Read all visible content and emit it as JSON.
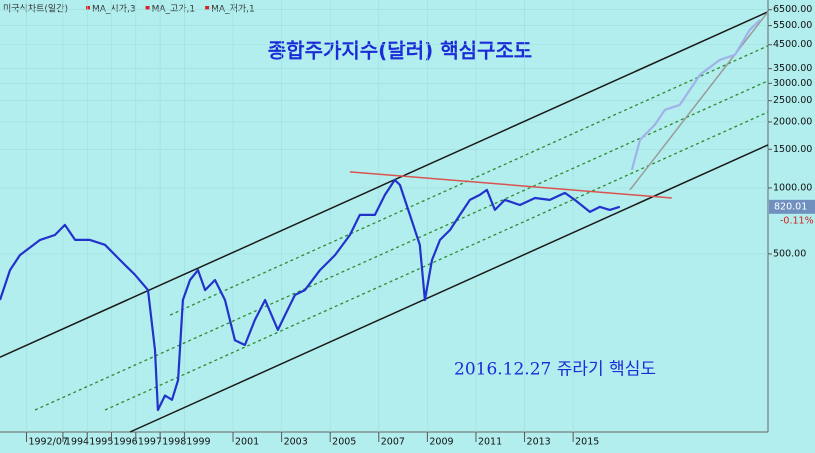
{
  "chart_data": {
    "type": "line",
    "chart_label": "미국식차트(일간)",
    "legend_items": [
      "MA_시가,3",
      "MA_고가,1",
      "MA_저가,1"
    ],
    "title": "종합주가지수(달러) 핵심구조도",
    "annotation": "2016.12.27 쥬라기 핵심도",
    "log_scale": true,
    "grid": true,
    "xlim": [
      1991.41,
      2023.02
    ],
    "ylim": [
      77,
      7200
    ],
    "xticks": [
      {
        "value": 1992.5,
        "label": "1992/07"
      },
      1994,
      1995,
      1996,
      1997,
      1998,
      1999,
      2001,
      2003,
      2005,
      2007,
      2009,
      2011,
      2013,
      2015
    ],
    "yticks": [
      {
        "value": 6500,
        "label": "6500.00"
      },
      {
        "value": 5500,
        "label": "5500.00"
      },
      {
        "value": 4500,
        "label": "4500.00"
      },
      {
        "value": 3500,
        "label": "3500.00"
      },
      {
        "value": 3000,
        "label": "3000.00"
      },
      {
        "value": 2500,
        "label": "2500.00"
      },
      {
        "value": 2000,
        "label": "2000.00"
      },
      {
        "value": 1500,
        "label": "1500.00"
      },
      {
        "value": 1000,
        "label": "1000.00"
      },
      {
        "value": 500,
        "label": "500.00"
      }
    ],
    "last_price": 820.01,
    "change_label": "-0.11%",
    "series": [
      {
        "color": "#2233cc",
        "x": [
          1991.41,
          1991.82,
          1992.23,
          1993.06,
          1993.67,
          1994.08,
          1994.5,
          1995.11,
          1995.73,
          1996.35,
          1996.97,
          1997.5,
          1997.79,
          1997.91,
          1998.2,
          1998.49,
          1998.74,
          1998.94,
          1999.23,
          1999.56,
          1999.85,
          2000.26,
          2000.67,
          2001.08,
          2001.49,
          2001.9,
          2002.32,
          2002.85,
          2003.14,
          2003.55,
          2003.96,
          2004.58,
          2005.2,
          2005.81,
          2006.22,
          2006.84,
          2007.25,
          2007.66,
          2007.87,
          2008.28,
          2008.69,
          2008.9,
          2009.19,
          2009.52,
          2009.93,
          2010.34,
          2010.75,
          2011.16,
          2011.45,
          2011.78,
          2012.19,
          2012.81,
          2013.43,
          2014.04,
          2014.66,
          2015.07,
          2015.69,
          2016.1,
          2016.51,
          2016.92
        ],
        "values": [
          308,
          422,
          494,
          579,
          610,
          678,
          579,
          579,
          550,
          469,
          401,
          342,
          182,
          97,
          113,
          108,
          133,
          308,
          380,
          422,
          342,
          380,
          308,
          202,
          192,
          250,
          308,
          225,
          263,
          325,
          342,
          422,
          494,
          610,
          753,
          753,
          929,
          1088,
          1032,
          753,
          550,
          308,
          469,
          579,
          643,
          753,
          882,
          929,
          979,
          794,
          882,
          836,
          900,
          882,
          949,
          882,
          777,
          819,
          794,
          820
        ]
      },
      {
        "color": "#9fb3ea",
        "x": [
          2017.42,
          2017.75,
          2018.36,
          2018.78,
          2019.39,
          2020.22,
          2021.04,
          2021.66,
          2022.27,
          2022.69
        ],
        "values": [
          1208,
          1657,
          1941,
          2273,
          2393,
          3280,
          3840,
          4048,
          5270,
          5840
        ]
      }
    ],
    "trendlines": [
      {
        "color": "#1a1a1a",
        "dash": false,
        "x": [
          1991.41,
          2023.02
        ],
        "values": [
          169,
          6360
        ]
      },
      {
        "color": "#1a1a1a",
        "dash": false,
        "x": [
          1996.76,
          2023.02
        ],
        "values": [
          77,
          1572
        ]
      },
      {
        "color": "#2e8b2e",
        "dash": true,
        "x": [
          1992.85,
          2023.02
        ],
        "values": [
          97,
          3080
        ]
      },
      {
        "color": "#2e8b2e",
        "dash": true,
        "x": [
          1995.73,
          2023.02
        ],
        "values": [
          97,
          2220
        ]
      },
      {
        "color": "#2e8b2e",
        "dash": true,
        "x": [
          1998.41,
          2023.02
        ],
        "values": [
          263,
          4450
        ]
      },
      {
        "color": "#d9534f",
        "dash": false,
        "x": [
          2005.81,
          2019.06
        ],
        "values": [
          1183,
          900
        ]
      },
      {
        "color": "#9a9a9a",
        "dash": false,
        "x": [
          2017.34,
          2023.02
        ],
        "values": [
          979,
          6360
        ]
      }
    ]
  }
}
